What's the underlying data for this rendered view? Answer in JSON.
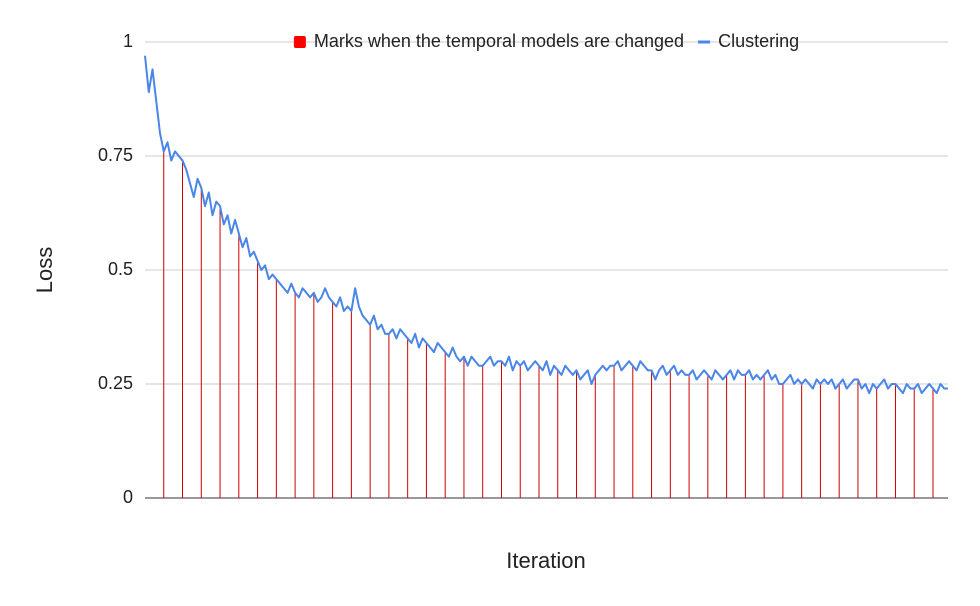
{
  "chart_data": {
    "type": "combo",
    "x_axis_label": "Iteration",
    "y_axis_label": "Loss",
    "ylim": [
      0,
      1
    ],
    "yticks": [
      0,
      0.25,
      0.5,
      0.75,
      1
    ],
    "grid": true,
    "legend_position": "top",
    "series": [
      {
        "name": "Marks when the temporal models are changed",
        "type": "stem",
        "color": "#cc0000",
        "legend_color": "#ff0000",
        "values": [
          null,
          null,
          null,
          null,
          null,
          0.76,
          null,
          null,
          null,
          null,
          0.74,
          null,
          null,
          null,
          null,
          0.68,
          null,
          null,
          null,
          null,
          0.64,
          null,
          null,
          null,
          null,
          0.58,
          null,
          null,
          null,
          null,
          0.52,
          null,
          null,
          null,
          null,
          0.48,
          null,
          null,
          null,
          null,
          0.45,
          null,
          null,
          null,
          null,
          0.45,
          null,
          null,
          null,
          null,
          0.43,
          null,
          null,
          null,
          null,
          0.41,
          null,
          null,
          null,
          null,
          0.38,
          null,
          null,
          null,
          null,
          0.36,
          null,
          null,
          null,
          null,
          0.35,
          null,
          null,
          null,
          null,
          0.34,
          null,
          null,
          null,
          null,
          0.32,
          null,
          null,
          null,
          null,
          0.31,
          null,
          null,
          null,
          null,
          0.29,
          null,
          null,
          null,
          null,
          0.3,
          null,
          null,
          null,
          null,
          0.29,
          null,
          null,
          null,
          null,
          0.29,
          null,
          null,
          null,
          null,
          0.28,
          null,
          null,
          null,
          null,
          0.28,
          null,
          null,
          null,
          null,
          0.27,
          null,
          null,
          null,
          null,
          0.29,
          null,
          null,
          null,
          null,
          0.29,
          null,
          null,
          null,
          null,
          0.28,
          null,
          null,
          null,
          null,
          0.28,
          null,
          null,
          null,
          null,
          0.27,
          null,
          null,
          null,
          null,
          0.27,
          null,
          null,
          null,
          null,
          0.27,
          null,
          null,
          null,
          null,
          0.27,
          null,
          null,
          null,
          null,
          0.27,
          null,
          null,
          null,
          null,
          0.25,
          null,
          null,
          null,
          null,
          0.25,
          null,
          null,
          null,
          null,
          0.25,
          null,
          null,
          null,
          null,
          0.25,
          null,
          null,
          null,
          null,
          0.26,
          null,
          null,
          null,
          null,
          0.24,
          null,
          null,
          null,
          null,
          0.25,
          null,
          null,
          null,
          null,
          0.24,
          null,
          null,
          null,
          null,
          0.24,
          null,
          null,
          null,
          null
        ]
      },
      {
        "name": "Clustering",
        "type": "line",
        "color": "#4a86e8",
        "values": [
          0.97,
          0.89,
          0.94,
          0.87,
          0.8,
          0.76,
          0.78,
          0.74,
          0.76,
          0.75,
          0.74,
          0.72,
          0.69,
          0.66,
          0.7,
          0.68,
          0.64,
          0.67,
          0.62,
          0.65,
          0.64,
          0.6,
          0.62,
          0.58,
          0.61,
          0.58,
          0.55,
          0.57,
          0.53,
          0.54,
          0.52,
          0.5,
          0.51,
          0.48,
          0.49,
          0.48,
          0.47,
          0.46,
          0.45,
          0.47,
          0.45,
          0.44,
          0.46,
          0.45,
          0.44,
          0.45,
          0.43,
          0.44,
          0.46,
          0.44,
          0.43,
          0.42,
          0.44,
          0.41,
          0.42,
          0.41,
          0.46,
          0.42,
          0.4,
          0.39,
          0.38,
          0.4,
          0.37,
          0.38,
          0.36,
          0.36,
          0.37,
          0.35,
          0.37,
          0.36,
          0.35,
          0.34,
          0.36,
          0.33,
          0.35,
          0.34,
          0.33,
          0.32,
          0.34,
          0.33,
          0.32,
          0.31,
          0.33,
          0.31,
          0.3,
          0.31,
          0.29,
          0.31,
          0.3,
          0.29,
          0.29,
          0.3,
          0.31,
          0.29,
          0.3,
          0.3,
          0.29,
          0.31,
          0.28,
          0.3,
          0.29,
          0.3,
          0.28,
          0.29,
          0.3,
          0.29,
          0.28,
          0.3,
          0.27,
          0.29,
          0.28,
          0.27,
          0.29,
          0.28,
          0.27,
          0.28,
          0.26,
          0.27,
          0.28,
          0.25,
          0.27,
          0.28,
          0.29,
          0.28,
          0.29,
          0.29,
          0.3,
          0.28,
          0.29,
          0.3,
          0.29,
          0.28,
          0.3,
          0.29,
          0.28,
          0.28,
          0.26,
          0.28,
          0.29,
          0.27,
          0.28,
          0.29,
          0.27,
          0.28,
          0.27,
          0.27,
          0.28,
          0.26,
          0.27,
          0.28,
          0.27,
          0.26,
          0.28,
          0.27,
          0.26,
          0.27,
          0.28,
          0.26,
          0.28,
          0.27,
          0.27,
          0.28,
          0.26,
          0.27,
          0.26,
          0.27,
          0.28,
          0.26,
          0.27,
          0.25,
          0.25,
          0.26,
          0.27,
          0.25,
          0.26,
          0.25,
          0.26,
          0.25,
          0.24,
          0.26,
          0.25,
          0.26,
          0.25,
          0.26,
          0.24,
          0.25,
          0.26,
          0.24,
          0.25,
          0.26,
          0.26,
          0.24,
          0.25,
          0.23,
          0.25,
          0.24,
          0.25,
          0.26,
          0.24,
          0.25,
          0.25,
          0.24,
          0.23,
          0.25,
          0.24,
          0.24,
          0.25,
          0.23,
          0.24,
          0.25,
          0.24,
          0.23,
          0.25,
          0.24,
          0.24
        ]
      }
    ]
  }
}
